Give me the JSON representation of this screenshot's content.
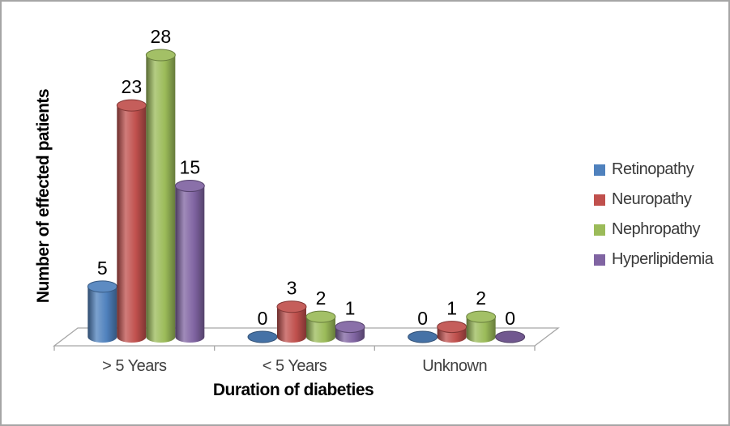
{
  "figure": {
    "background": "#FFFFFF",
    "border_color": "#A6A6A6"
  },
  "chart_data": {
    "type": "bar",
    "subtype": "3d-cylinder",
    "title": "",
    "categories": [
      "> 5 Years",
      "< 5 Years",
      "Unknown"
    ],
    "series": [
      {
        "name": "Retinopathy",
        "color": "#4F81BD",
        "values": [
          5,
          0,
          0
        ]
      },
      {
        "name": "Neuropathy",
        "color": "#C0504D",
        "values": [
          23,
          3,
          1
        ]
      },
      {
        "name": "Nephropathy",
        "color": "#9BBB59",
        "values": [
          28,
          2,
          2
        ]
      },
      {
        "name": "Hyperlipidemia",
        "color": "#8064A2",
        "values": [
          15,
          1,
          0
        ]
      }
    ],
    "xlabel": "Duration of diabeties",
    "ylabel": "Number of effected patients",
    "value_labels": true,
    "legend_position": "right",
    "grid": false,
    "value_axis_visible": false,
    "axis_color": "#A6A6A6",
    "category_label_color": "#404040",
    "value_label_color": "#000000"
  }
}
